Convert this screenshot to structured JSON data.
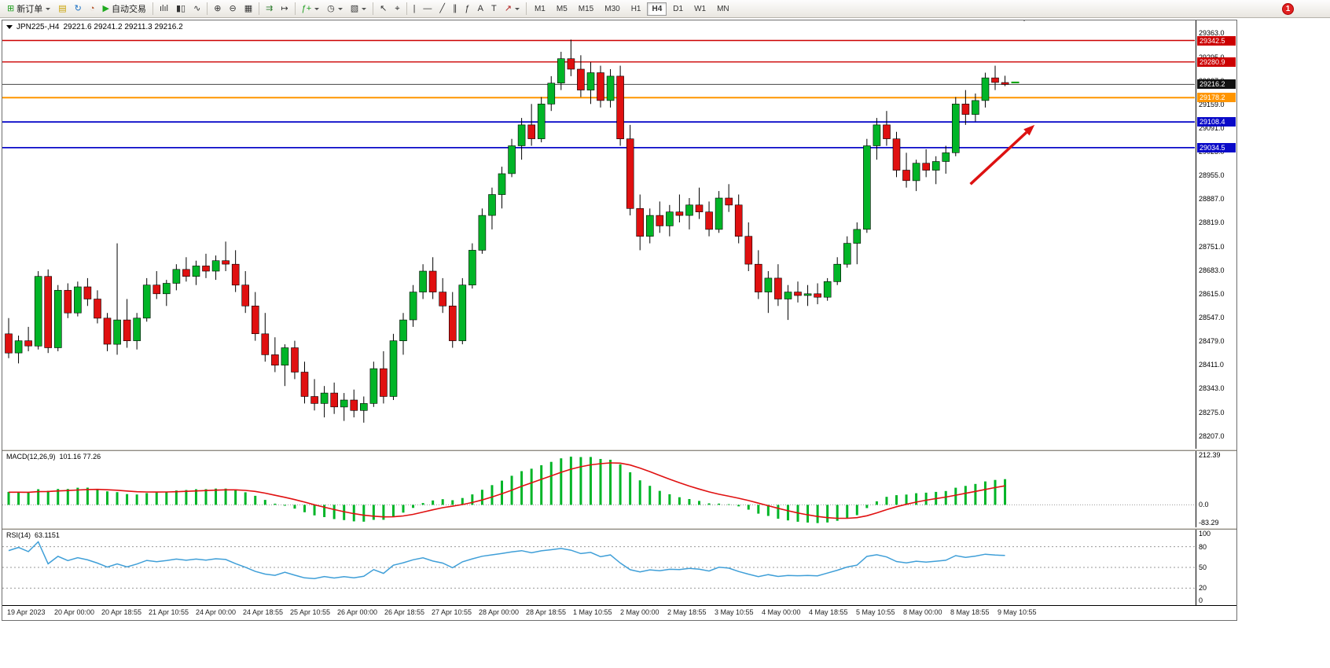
{
  "toolbar": {
    "buttons": [
      {
        "name": "new-order",
        "label": "新订单",
        "glyph": "⊞",
        "glyph_color": "#1f9e1f",
        "caret": true
      },
      {
        "name": "profiles",
        "glyph": "▤",
        "glyph_color": "#c8a000"
      },
      {
        "name": "refresh",
        "glyph": "↻",
        "glyph_color": "#1a6fc4"
      },
      {
        "name": "history-center",
        "glyph": "◔",
        "glyph_color": "#b04a20"
      },
      {
        "name": "autotrading",
        "label": "自动交易",
        "glyph": "▶",
        "glyph_color": "#1faa1f"
      },
      {
        "sep": true
      },
      {
        "name": "bar-chart",
        "glyph": "ılıl",
        "glyph_color": "#333"
      },
      {
        "name": "candlestick-chart",
        "glyph": "▮▯",
        "glyph_color": "#333"
      },
      {
        "name": "line-chart",
        "glyph": "∿",
        "glyph_color": "#333"
      },
      {
        "sep": true
      },
      {
        "name": "zoom-in",
        "glyph": "⊕",
        "glyph_color": "#333"
      },
      {
        "name": "zoom-out",
        "glyph": "⊖",
        "glyph_color": "#333"
      },
      {
        "name": "tile-windows",
        "glyph": "▦",
        "glyph_color": "#333"
      },
      {
        "sep": true
      },
      {
        "name": "auto-scroll",
        "glyph": "⇉",
        "glyph_color": "#2c7a2c"
      },
      {
        "name": "chart-shift",
        "glyph": "↦",
        "glyph_color": "#333"
      },
      {
        "sep": true
      },
      {
        "name": "indicators",
        "glyph": "ƒ+",
        "glyph_color": "#1f9e1f",
        "caret": true
      },
      {
        "name": "periods",
        "glyph": "◷",
        "glyph_color": "#333",
        "caret": true
      },
      {
        "name": "templates",
        "glyph": "▧",
        "glyph_color": "#333",
        "caret": true
      },
      {
        "sep": true
      },
      {
        "name": "cursor",
        "glyph": "↖",
        "glyph_color": "#333"
      },
      {
        "name": "crosshair",
        "glyph": "⌖",
        "glyph_color": "#333"
      },
      {
        "sep": true
      },
      {
        "name": "vertical-line",
        "glyph": "|",
        "glyph_color": "#333"
      },
      {
        "name": "horizontal-line",
        "glyph": "—",
        "glyph_color": "#333"
      },
      {
        "name": "trendline",
        "glyph": "╱",
        "glyph_color": "#333"
      },
      {
        "name": "equidistant-channel",
        "glyph": "∥",
        "glyph_color": "#333"
      },
      {
        "name": "fibonacci",
        "glyph": "ƒ",
        "glyph_color": "#333"
      },
      {
        "name": "text",
        "glyph": "A",
        "glyph_color": "#333"
      },
      {
        "name": "text-label",
        "glyph": "T",
        "glyph_color": "#333"
      },
      {
        "name": "arrows",
        "glyph": "↗",
        "glyph_color": "#b02020",
        "caret": true
      },
      {
        "sep": true
      }
    ],
    "timeframes": [
      "M1",
      "M5",
      "M15",
      "M30",
      "H1",
      "H4",
      "D1",
      "W1",
      "MN"
    ],
    "active_timeframe": "H4",
    "badge": "1"
  },
  "chart": {
    "header": "JPN225-,H4",
    "ohlc": "29221.6 29241.2 29211.3 29216.2",
    "current_price": "29216.2",
    "current_price_color": "#111111",
    "levels": [
      {
        "price": 29342.5,
        "label": "29342.5",
        "color": "#cc0000",
        "width": 1.4
      },
      {
        "price": 29280.9,
        "label": "29280.9",
        "color": "#cc0000",
        "width": 1.4
      },
      {
        "price": 29178.2,
        "label": "29178.2",
        "color": "#ff9500",
        "width": 2
      },
      {
        "price": 29108.4,
        "label": "29108.4",
        "color": "#0a0ac8",
        "width": 1.8
      },
      {
        "price": 29034.5,
        "label": "29034.5",
        "color": "#0a0ac8",
        "width": 1.8
      }
    ],
    "y_axis_ticks": [
      "29363.0",
      "29295.0",
      "29227.0",
      "29159.0",
      "29091.0",
      "29023.0",
      "28955.0",
      "28887.0",
      "28819.0",
      "28751.0",
      "28683.0",
      "28615.0",
      "28547.0",
      "28479.0",
      "28411.0",
      "28343.0",
      "28275.0",
      "28207.0"
    ],
    "x_axis_ticks": [
      "19 Apr 2023",
      "20 Apr 00:00",
      "20 Apr 18:55",
      "21 Apr 10:55",
      "24 Apr 00:00",
      "24 Apr 18:55",
      "25 Apr 10:55",
      "26 Apr 00:00",
      "26 Apr 18:55",
      "27 Apr 10:55",
      "28 Apr 00:00",
      "28 Apr 18:55",
      "1 May 10:55",
      "2 May 00:00",
      "2 May 18:55",
      "3 May 10:55",
      "4 May 00:00",
      "4 May 18:55",
      "5 May 10:55",
      "8 May 00:00",
      "8 May 18:55",
      "9 May 10:55"
    ]
  },
  "chart_data": {
    "type": "candlestick",
    "symbol": "JPN225-",
    "timeframe": "H4",
    "up_color": "#00b527",
    "down_color": "#e01010",
    "wick_color": "#000000",
    "candles": [
      [
        28500,
        28545,
        28430,
        28445
      ],
      [
        28445,
        28495,
        28415,
        28480
      ],
      [
        28480,
        28520,
        28450,
        28465
      ],
      [
        28465,
        28680,
        28455,
        28665
      ],
      [
        28665,
        28685,
        28445,
        28460
      ],
      [
        28460,
        28640,
        28450,
        28625
      ],
      [
        28625,
        28645,
        28545,
        28560
      ],
      [
        28560,
        28650,
        28550,
        28635
      ],
      [
        28635,
        28660,
        28580,
        28600
      ],
      [
        28600,
        28625,
        28530,
        28545
      ],
      [
        28545,
        28560,
        28450,
        28470
      ],
      [
        28470,
        28760,
        28440,
        28540
      ],
      [
        28540,
        28600,
        28460,
        28480
      ],
      [
        28480,
        28560,
        28455,
        28545
      ],
      [
        28545,
        28660,
        28535,
        28640
      ],
      [
        28640,
        28680,
        28600,
        28615
      ],
      [
        28615,
        28655,
        28580,
        28645
      ],
      [
        28645,
        28700,
        28625,
        28685
      ],
      [
        28685,
        28720,
        28650,
        28665
      ],
      [
        28665,
        28710,
        28640,
        28695
      ],
      [
        28695,
        28730,
        28660,
        28680
      ],
      [
        28680,
        28725,
        28655,
        28710
      ],
      [
        28710,
        28765,
        28680,
        28700
      ],
      [
        28700,
        28740,
        28620,
        28640
      ],
      [
        28640,
        28680,
        28560,
        28580
      ],
      [
        28580,
        28620,
        28480,
        28500
      ],
      [
        28500,
        28560,
        28420,
        28440
      ],
      [
        28440,
        28490,
        28390,
        28410
      ],
      [
        28410,
        28470,
        28350,
        28460
      ],
      [
        28460,
        28480,
        28370,
        28390
      ],
      [
        28390,
        28420,
        28300,
        28320
      ],
      [
        28320,
        28370,
        28280,
        28300
      ],
      [
        28300,
        28350,
        28260,
        28330
      ],
      [
        28330,
        28360,
        28270,
        28290
      ],
      [
        28290,
        28330,
        28250,
        28310
      ],
      [
        28310,
        28340,
        28260,
        28280
      ],
      [
        28280,
        28320,
        28245,
        28300
      ],
      [
        28300,
        28420,
        28290,
        28400
      ],
      [
        28400,
        28450,
        28300,
        28320
      ],
      [
        28320,
        28500,
        28310,
        28480
      ],
      [
        28480,
        28560,
        28440,
        28540
      ],
      [
        28540,
        28640,
        28520,
        28620
      ],
      [
        28620,
        28700,
        28600,
        28680
      ],
      [
        28680,
        28720,
        28600,
        28620
      ],
      [
        28620,
        28660,
        28560,
        28580
      ],
      [
        28580,
        28620,
        28460,
        28480
      ],
      [
        28480,
        28660,
        28470,
        28640
      ],
      [
        28640,
        28760,
        28630,
        28740
      ],
      [
        28740,
        28860,
        28730,
        28840
      ],
      [
        28840,
        28920,
        28800,
        28900
      ],
      [
        28900,
        28980,
        28860,
        28960
      ],
      [
        28960,
        29060,
        28950,
        29040
      ],
      [
        29040,
        29120,
        29000,
        29100
      ],
      [
        29100,
        29160,
        29040,
        29060
      ],
      [
        29060,
        29180,
        29050,
        29160
      ],
      [
        29160,
        29240,
        29140,
        29220
      ],
      [
        29220,
        29310,
        29200,
        29290
      ],
      [
        29290,
        29345,
        29240,
        29260
      ],
      [
        29260,
        29300,
        29180,
        29200
      ],
      [
        29200,
        29280,
        29160,
        29250
      ],
      [
        29250,
        29270,
        29150,
        29170
      ],
      [
        29170,
        29260,
        29150,
        29240
      ],
      [
        29240,
        29270,
        29040,
        29060
      ],
      [
        29060,
        29100,
        28840,
        28860
      ],
      [
        28860,
        28900,
        28740,
        28780
      ],
      [
        28780,
        28860,
        28760,
        28840
      ],
      [
        28840,
        28880,
        28790,
        28810
      ],
      [
        28810,
        28870,
        28780,
        28850
      ],
      [
        28850,
        28900,
        28820,
        28840
      ],
      [
        28840,
        28890,
        28800,
        28870
      ],
      [
        28870,
        28920,
        28830,
        28850
      ],
      [
        28850,
        28880,
        28780,
        28800
      ],
      [
        28800,
        28910,
        28790,
        28890
      ],
      [
        28890,
        28930,
        28850,
        28870
      ],
      [
        28870,
        28900,
        28760,
        28780
      ],
      [
        28780,
        28820,
        28680,
        28700
      ],
      [
        28700,
        28740,
        28600,
        28620
      ],
      [
        28620,
        28680,
        28560,
        28660
      ],
      [
        28660,
        28700,
        28580,
        28600
      ],
      [
        28600,
        28640,
        28540,
        28620
      ],
      [
        28620,
        28650,
        28590,
        28610
      ],
      [
        28610,
        28640,
        28580,
        28615
      ],
      [
        28615,
        28645,
        28585,
        28605
      ],
      [
        28605,
        28660,
        28595,
        28650
      ],
      [
        28650,
        28720,
        28640,
        28700
      ],
      [
        28700,
        28780,
        28690,
        28760
      ],
      [
        28760,
        28820,
        28700,
        28800
      ],
      [
        28800,
        29060,
        28790,
        29040
      ],
      [
        29040,
        29120,
        29000,
        29100
      ],
      [
        29100,
        29140,
        29040,
        29060
      ],
      [
        29060,
        29080,
        28950,
        28970
      ],
      [
        28970,
        29020,
        28920,
        28940
      ],
      [
        28940,
        29000,
        28910,
        28990
      ],
      [
        28990,
        29030,
        28950,
        28970
      ],
      [
        28970,
        29010,
        28930,
        28995
      ],
      [
        28995,
        29040,
        28960,
        29020
      ],
      [
        29020,
        29180,
        29010,
        29160
      ],
      [
        29160,
        29200,
        29100,
        29130
      ],
      [
        29130,
        29190,
        29110,
        29170
      ],
      [
        29170,
        29250,
        29150,
        29235
      ],
      [
        29235,
        29270,
        29200,
        29222
      ],
      [
        29221.6,
        29241.2,
        29211.3,
        29216.2
      ]
    ]
  },
  "indicators": {
    "macd": {
      "label": "MACD(12,26,9)",
      "values": "101.16 77.26",
      "color_hist": "#00b527",
      "color_signal": "#e01010",
      "range": [
        -83.29,
        212.39
      ],
      "scale_ticks": [
        "212.39",
        "0.0",
        "-83.29"
      ]
    },
    "rsi": {
      "label": "RSI(14)",
      "value": "63.1151",
      "color": "#3f9fd8",
      "levels": [
        80,
        50,
        20
      ],
      "scale_ticks": [
        "100",
        "80",
        "50",
        "20",
        "0"
      ]
    }
  },
  "annotation": {
    "type": "arrow",
    "color": "#dd1111",
    "from": {
      "candle": 97.5,
      "price": 28930
    },
    "to": {
      "candle": 104,
      "price": 29100
    }
  }
}
